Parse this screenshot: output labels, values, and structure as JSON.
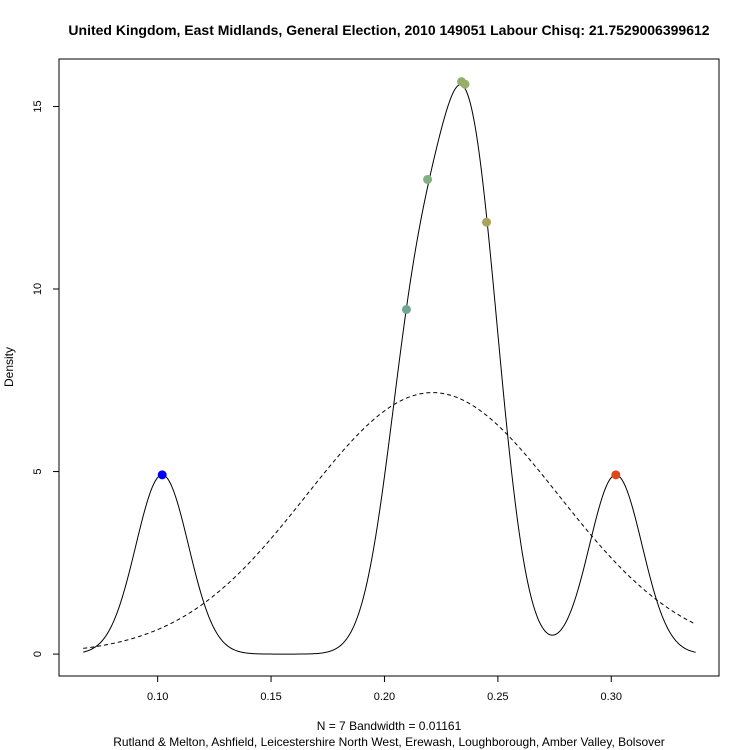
{
  "chart_data": {
    "type": "line",
    "title": "United Kingdom, East Midlands, General Election, 2010 149051 Labour Chisq: 21.7529006399612",
    "xlabel_line1": "N = 7   Bandwidth = 0.01161",
    "xlabel_line2": "Rutland & Melton, Ashfield, Leicestershire North West, Erewash, Loughborough, Amber Valley, Bolsover",
    "ylabel": "Density",
    "xlim": [
      0.0565,
      0.3475
    ],
    "ylim": [
      -0.6,
      16.3
    ],
    "x_ticks": [
      0.1,
      0.15,
      0.2,
      0.25,
      0.3
    ],
    "x_tick_labels": [
      "0.10",
      "0.15",
      "0.20",
      "0.25",
      "0.30"
    ],
    "y_ticks": [
      0,
      5,
      10,
      15
    ],
    "y_tick_labels": [
      "0",
      "5",
      "10",
      "15"
    ],
    "grid": false,
    "kde": {
      "bandwidth": 0.01161,
      "x_from": 0.0672,
      "x_to": 0.3372
    },
    "normal": {
      "mean": 0.2212,
      "sd": 0.0557
    },
    "series": [
      {
        "kind": "density",
        "color": "#000000",
        "style": "solid"
      },
      {
        "kind": "normal",
        "color": "#000000",
        "style": "dashed"
      }
    ],
    "points": [
      {
        "x": 0.102,
        "y": 4.91,
        "color": "#0000ff"
      },
      {
        "x": 0.2097,
        "y": 9.44,
        "color": "#6fa88e"
      },
      {
        "x": 0.219,
        "y": 13.0,
        "color": "#7fb07f"
      },
      {
        "x": 0.234,
        "y": 15.68,
        "color": "#90ae6c"
      },
      {
        "x": 0.2355,
        "y": 15.61,
        "color": "#97ad6a"
      },
      {
        "x": 0.245,
        "y": 11.83,
        "color": "#a8a45e"
      },
      {
        "x": 0.302,
        "y": 4.91,
        "color": "#e0461e"
      }
    ]
  }
}
